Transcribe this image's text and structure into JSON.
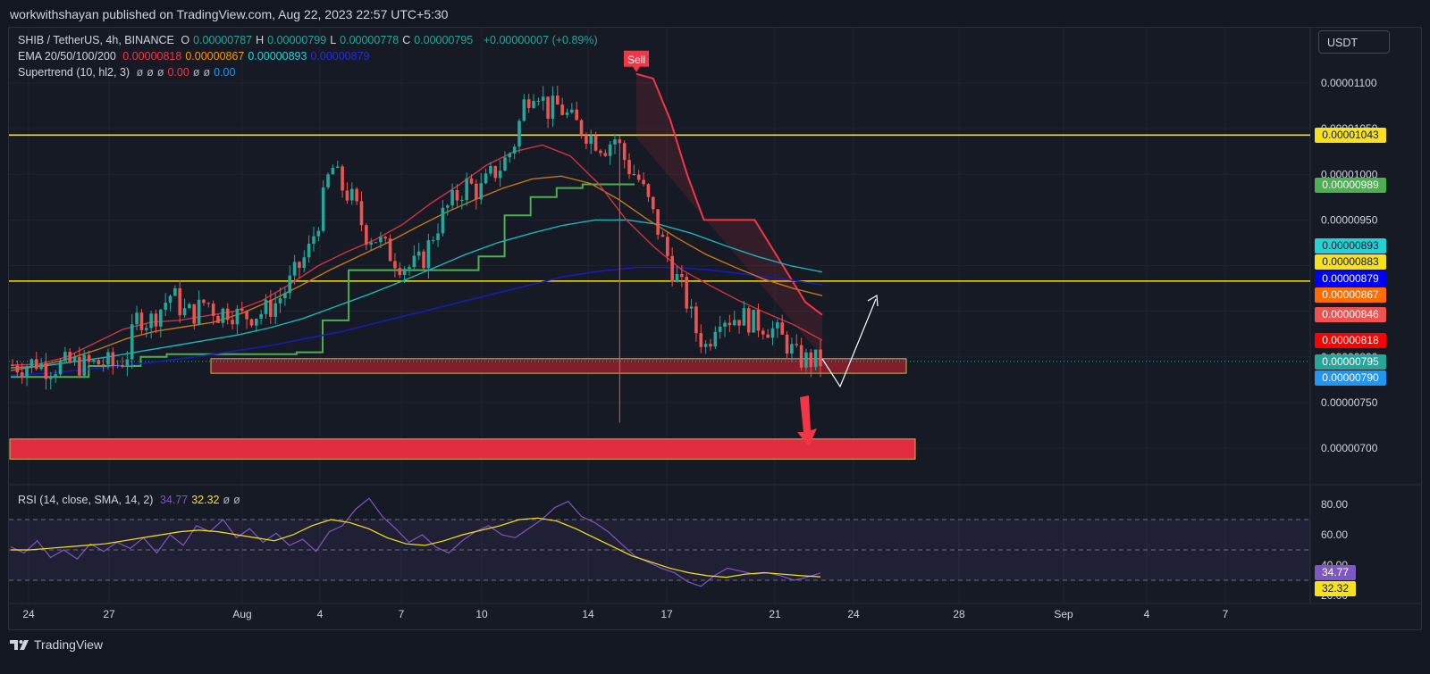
{
  "publish_text": "workwithshayan published on TradingView.com, Aug 22, 2023 22:57 UTC+5:30",
  "brand": "TradingView",
  "currency_button": "USDT",
  "legend": {
    "symbol": "SHIB / TetherUS, 4h, BINANCE",
    "ohlc": [
      {
        "k": "O",
        "v": "0.00000787"
      },
      {
        "k": "H",
        "v": "0.00000799"
      },
      {
        "k": "L",
        "v": "0.00000778"
      },
      {
        "k": "C",
        "v": "0.00000795"
      }
    ],
    "change": "+0.00000007 (+0.89%)",
    "ema_label": "EMA 20/50/100/200",
    "ema_values": [
      {
        "v": "0.00000818",
        "color": "#f23645"
      },
      {
        "v": "0.00000867",
        "color": "#ff9800"
      },
      {
        "v": "0.00000893",
        "color": "#22d3d6"
      },
      {
        "v": "0.00000879",
        "color": "#2a2ad9"
      }
    ],
    "supertrend_label": "Supertrend (10, hl2, 3)",
    "supertrend_values": [
      {
        "v": "ø",
        "color": "#b2b5be"
      },
      {
        "v": "ø",
        "color": "#b2b5be"
      },
      {
        "v": "ø",
        "color": "#b2b5be"
      },
      {
        "v": "0.00",
        "color": "#f23645"
      },
      {
        "v": "ø",
        "color": "#b2b5be"
      },
      {
        "v": "ø",
        "color": "#b2b5be"
      },
      {
        "v": "0.00",
        "color": "#2196f3"
      }
    ],
    "rsi_label": "RSI (14, close, SMA, 14, 2)",
    "rsi_values": [
      {
        "v": "34.77",
        "color": "#7e57c2"
      },
      {
        "v": "32.32",
        "color": "#f7e11e"
      },
      {
        "v": "ø",
        "color": "#b2b5be"
      },
      {
        "v": "ø",
        "color": "#b2b5be"
      }
    ]
  },
  "sell_label": "Sell",
  "price_axis": {
    "ticks": [
      "0.00001100",
      "0.00001050",
      "0.00001000",
      "0.00000950",
      "0.00000900",
      "0.00000850",
      "0.00000800",
      "0.00000750",
      "0.00000700"
    ],
    "badges": [
      {
        "name": "resistance-upper-badge",
        "text": "0.00001043",
        "bg": "#f7e11e",
        "fg": "#131722"
      },
      {
        "name": "supertrend-green-badge",
        "text": "0.00000989",
        "bg": "#4caf50",
        "fg": "#ffffff"
      },
      {
        "name": "ema-100-badge",
        "text": "0.00000893",
        "bg": "#22d3d6",
        "fg": "#131722"
      },
      {
        "name": "resistance-lower-badge",
        "text": "0.00000883",
        "bg": "#f7e11e",
        "fg": "#131722"
      },
      {
        "name": "ema-200-badge",
        "text": "0.00000879",
        "bg": "#0000ff",
        "fg": "#ffffff"
      },
      {
        "name": "ema-50-badge",
        "text": "0.00000867",
        "bg": "#ff6d00",
        "fg": "#ffffff"
      },
      {
        "name": "supertrend-red-badge",
        "text": "0.00000846",
        "bg": "#ef5350",
        "fg": "#ffffff"
      },
      {
        "name": "ema-20-badge",
        "text": "0.00000818",
        "bg": "#ff0000",
        "fg": "#ffffff"
      },
      {
        "name": "last-price-badge",
        "text": "0.00000795",
        "bg": "#26a69a",
        "fg": "#ffffff"
      },
      {
        "name": "support-badge",
        "text": "0.00000790",
        "bg": "#2196f3",
        "fg": "#ffffff"
      }
    ]
  },
  "rsi_axis": {
    "ticks": [
      "80.00",
      "60.00",
      "40.00",
      "20.00"
    ],
    "badges": [
      {
        "name": "rsi-value-badge",
        "text": "34.77",
        "bg": "#7e57c2",
        "fg": "#ffffff"
      },
      {
        "name": "rsi-sma-badge",
        "text": "32.32",
        "bg": "#f7e11e",
        "fg": "#131722"
      }
    ]
  },
  "time_axis": [
    "24",
    "27",
    "Aug",
    "4",
    "7",
    "10",
    "14",
    "17",
    "21",
    "24",
    "28",
    "Sep",
    "4",
    "7"
  ],
  "chart_data": [
    {
      "type": "candlestick",
      "title": "SHIB / TetherUS, 4h, BINANCE",
      "y_range": [
        6.7e-06,
        1.14e-05
      ],
      "horizontal_levels": [
        1.043e-05,
        8.83e-06
      ],
      "zones": [
        {
          "from": 7.82e-06,
          "to": 7.98e-06,
          "color": "#801e2c"
        },
        {
          "from": 6.88e-06,
          "to": 7.1e-06,
          "color": "#e12d3f"
        }
      ],
      "price_path": [
        7.91e-06,
        7.89e-06,
        7.95e-06,
        7.88e-06,
        7.9e-06,
        7.93e-06,
        7.91e-06,
        7.92e-06,
        7.94e-06,
        7.9e-06,
        8e-06,
        8.45e-06,
        8.38e-06,
        8.53e-06,
        8.7e-06,
        8.49e-06,
        8.48e-06,
        8.62e-06,
        8.47e-06,
        8.52e-06,
        8.44e-06,
        8.46e-06,
        8.49e-06,
        8.57e-06,
        8.73e-06,
        8.95e-06,
        9.15e-06,
        9.55e-06,
        1.01e-05,
        9.85e-06,
        9.7e-06,
        9.35e-06,
        9.3e-06,
        9.15e-06,
        9.03e-06,
        8.98e-06,
        9.05e-06,
        9.35e-06,
        9.6e-06,
        9.75e-06,
        9.9e-06,
        9.8e-06,
        9.98e-06,
        1.01e-05,
        1.03e-05,
        1.08e-05,
        1.098e-05,
        1.07e-05,
        1.075e-05,
        1.06e-05,
        1.05e-05,
        1.04e-05,
        1.03e-05,
        1.04e-05,
        1.01e-05,
        9.95e-06,
        9.65e-06,
        9.3e-06,
        8.95e-06,
        8.7e-06,
        8.3e-06,
        8.1e-06,
        8.48e-06,
        8.42e-06,
        8.45e-06,
        8.38e-06,
        8.35e-06,
        8.28e-06,
        8.15e-06,
        7.98e-06,
        7.96e-06,
        7.95e-06
      ],
      "ema_20": [
        7.91e-06,
        7.92e-06,
        8e-06,
        8.15e-06,
        8.3e-06,
        8.38e-06,
        8.4e-06,
        8.45e-06,
        8.5e-06,
        8.62e-06,
        8.8e-06,
        9e-06,
        9.15e-06,
        9.28e-06,
        9.45e-06,
        9.68e-06,
        9.88e-06,
        1.01e-05,
        1.025e-05,
        1.032e-05,
        1.02e-05,
        9.9e-06,
        9.5e-06,
        9.2e-06,
        8.95e-06,
        8.78e-06,
        8.62e-06,
        8.48e-06,
        8.35e-06,
        8.18e-06
      ],
      "ema_50": [
        7.85e-06,
        7.9e-06,
        7.98e-06,
        8.08e-06,
        8.2e-06,
        8.28e-06,
        8.33e-06,
        8.38e-06,
        8.48e-06,
        8.62e-06,
        8.78e-06,
        8.95e-06,
        9.1e-06,
        9.25e-06,
        9.42e-06,
        9.58e-06,
        9.72e-06,
        9.85e-06,
        9.95e-06,
        9.98e-06,
        9.9e-06,
        9.72e-06,
        9.5e-06,
        9.3e-06,
        9.12e-06,
        8.98e-06,
        8.85e-06,
        8.75e-06,
        8.67e-06
      ],
      "ema_100": [
        7.88e-06,
        7.9e-06,
        7.95e-06,
        8e-06,
        8.06e-06,
        8.12e-06,
        8.18e-06,
        8.24e-06,
        8.32e-06,
        8.42e-06,
        8.55e-06,
        8.68e-06,
        8.82e-06,
        8.97e-06,
        9.12e-06,
        9.25e-06,
        9.35e-06,
        9.44e-06,
        9.5e-06,
        9.5e-06,
        9.45e-06,
        9.35e-06,
        9.22e-06,
        9.1e-06,
        9e-06,
        8.93e-06
      ],
      "ema_200": [
        7.8e-06,
        7.82e-06,
        7.86e-06,
        7.9e-06,
        7.95e-06,
        8e-06,
        8.06e-06,
        8.12e-06,
        8.2e-06,
        8.28e-06,
        8.38e-06,
        8.48e-06,
        8.58e-06,
        8.68e-06,
        8.78e-06,
        8.88e-06,
        8.94e-06,
        8.98e-06,
        8.98e-06,
        8.95e-06,
        8.9e-06,
        8.85e-06,
        8.79e-06
      ],
      "supertrend_up": [
        7.78e-06,
        7.78e-06,
        7.78e-06,
        7.9e-06,
        7.9e-06,
        8e-06,
        8.03e-06,
        8.03e-06,
        8.03e-06,
        8.03e-06,
        8.03e-06,
        8.05e-06,
        8.4e-06,
        8.95e-06,
        8.95e-06,
        8.95e-06,
        8.95e-06,
        8.95e-06,
        9.1e-06,
        9.55e-06,
        9.75e-06,
        9.85e-06,
        9.89e-06,
        9.89e-06,
        9.89e-06
      ],
      "supertrend_down": [
        1.11e-05,
        1.105e-05,
        1.06e-05,
        1e-05,
        9.5e-06,
        9.5e-06,
        9.5e-06,
        9.5e-06,
        9.2e-06,
        8.9e-06,
        8.6e-06,
        8.46e-06
      ],
      "signals": [
        {
          "label": "Sell",
          "price": 1.11e-05
        }
      ]
    },
    {
      "type": "line",
      "title": "RSI (14, close, SMA, 14, 2)",
      "y_range": [
        20,
        80
      ],
      "levels": [
        70,
        50,
        30
      ],
      "series": [
        {
          "name": "RSI",
          "values": [
            52,
            48,
            56,
            45,
            50,
            44,
            54,
            49,
            55,
            51,
            58,
            48,
            60,
            53,
            66,
            62,
            70,
            58,
            64,
            55,
            61,
            53,
            57,
            49,
            62,
            66,
            77,
            84,
            72,
            64,
            55,
            60,
            52,
            48,
            56,
            62,
            66,
            60,
            58,
            64,
            70,
            78,
            82,
            72,
            68,
            62,
            54,
            46,
            42,
            38,
            35,
            29,
            26,
            33,
            38,
            36,
            34,
            35,
            33,
            30,
            32,
            34.77
          ]
        },
        {
          "name": "SMA",
          "values": [
            50,
            50,
            51,
            52,
            53,
            54,
            56,
            58,
            60,
            62,
            63,
            62,
            60,
            58,
            56,
            60,
            66,
            70,
            68,
            64,
            58,
            54,
            53,
            56,
            60,
            63,
            66,
            70,
            71,
            69,
            64,
            58,
            52,
            46,
            42,
            38,
            35,
            33,
            32,
            34,
            35,
            34,
            33,
            32.32
          ]
        }
      ]
    }
  ]
}
